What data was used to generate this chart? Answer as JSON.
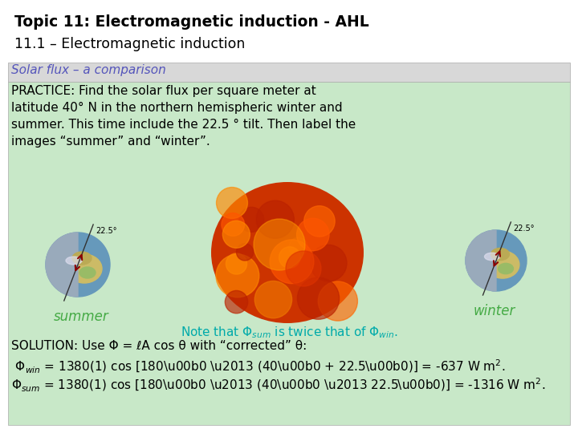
{
  "title_line1": "Topic 11: Electromagnetic induction - AHL",
  "title_line2": "11.1 – Electromagnetic induction",
  "subtitle": "Solar flux – a comparison",
  "practice_text_lines": [
    "PRACTICE: Find the solar flux per square meter at",
    "latitude 40° N in the northern hemispheric winter and",
    "summer. This time include the 22.5 ° tilt. Then label the",
    "images “summer” and “winter”."
  ],
  "bg_color": "#ffffff",
  "green_bg": "#c8e8c8",
  "gray_bg": "#d8d8d8",
  "title_color": "#000000",
  "subtitle_color": "#5555bb",
  "practice_color": "#000000",
  "note_color": "#00aaaa",
  "solution_color": "#000000",
  "summer_label": "summer",
  "winter_label": "winter",
  "label_color": "#44aa44",
  "tilt_annotation": "22.5°"
}
